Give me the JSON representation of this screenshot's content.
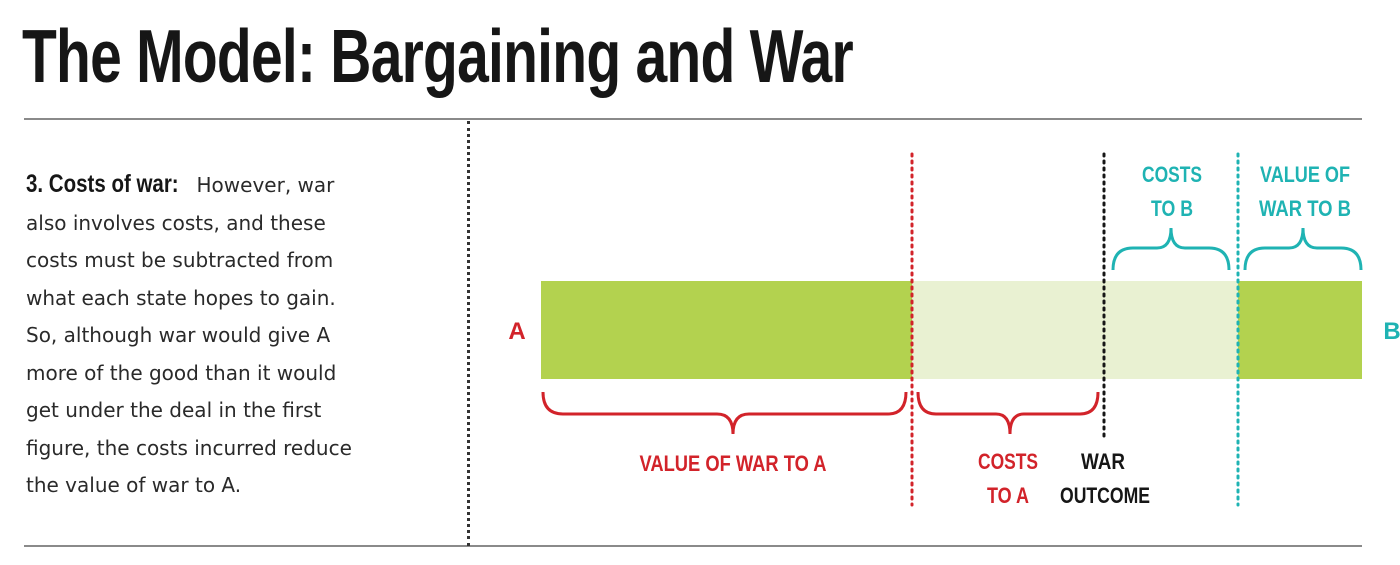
{
  "header": {
    "title": "The Model: Bargaining and War"
  },
  "description": {
    "lead": "3. Costs of war:",
    "lines": [
      "However, war",
      "also involves costs, and these",
      "costs must be subtracted from",
      "what each state hopes to gain.",
      "So, although war would give A",
      "more of the good than it would",
      "get under the deal in the first",
      "figure, the costs incurred reduce",
      "the value of war to A."
    ]
  },
  "diagram": {
    "endpoint_left": "A",
    "endpoint_right": "B",
    "value_of_war_to_a": "VALUE OF WAR TO A",
    "costs_to_a": [
      "COSTS",
      "TO A"
    ],
    "war_outcome": [
      "WAR",
      "OUTCOME"
    ],
    "costs_to_b": [
      "COSTS",
      "TO B"
    ],
    "value_of_war_to_b": [
      "VALUE OF",
      "WAR TO B"
    ],
    "colors": {
      "bar_strong": "#b3d24f",
      "bar_light": "#e9f1d2",
      "red": "#d2232a",
      "teal": "#1fb3b3",
      "black": "#161616"
    }
  }
}
